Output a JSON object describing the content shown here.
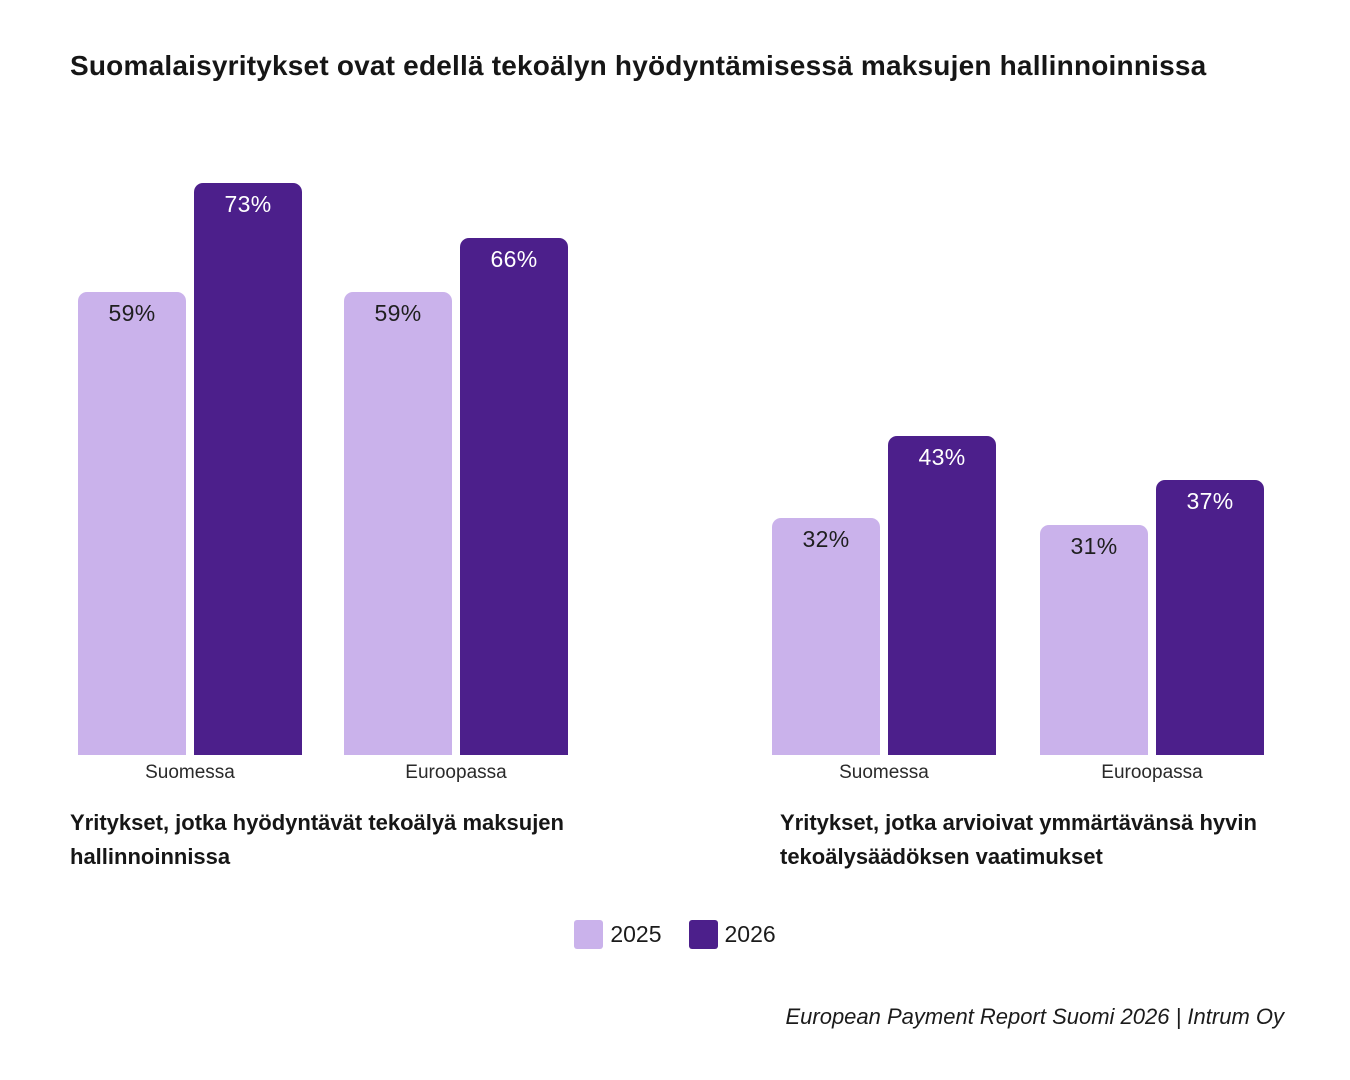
{
  "page": {
    "title": "Suomalaisyritykset ovat edellä tekoälyn hyödyntämisessä maksujen hallinnoinnissa",
    "source": "European Payment Report Suomi 2026 | Intrum Oy"
  },
  "colors": {
    "series_2025": "#CAB2EB",
    "series_2026": "#4C1F8B",
    "value_label_on_light": "#1F1F1F",
    "value_label_on_dark": "#FFFFFF",
    "text": "#161616"
  },
  "legend": {
    "position": "bottom-center",
    "items": [
      {
        "label": "2025",
        "color": "#CAB2EB"
      },
      {
        "label": "2026",
        "color": "#4C1F8B"
      }
    ]
  },
  "chart_data": [
    {
      "type": "bar",
      "title": "Yritykset, jotka hyödyntävät tekoälyä maksujen hallinnoinnissa",
      "categories": [
        "Suomessa",
        "Euroopassa"
      ],
      "series": [
        {
          "name": "2025",
          "values": [
            59,
            59
          ]
        },
        {
          "name": "2026",
          "values": [
            73,
            66
          ]
        }
      ],
      "unit": "%",
      "value_labels": "inside-top",
      "ylim": [
        0,
        100
      ],
      "grid": false,
      "axes_visible": false
    },
    {
      "type": "bar",
      "title": "Yritykset, jotka arvioivat ymmärtävänsä hyvin tekoälysäädöksen vaatimukset",
      "categories": [
        "Suomessa",
        "Euroopassa"
      ],
      "series": [
        {
          "name": "2025",
          "values": [
            32,
            31
          ]
        },
        {
          "name": "2026",
          "values": [
            43,
            37
          ]
        }
      ],
      "unit": "%",
      "value_labels": "inside-top",
      "ylim": [
        0,
        100
      ],
      "grid": false,
      "axes_visible": false
    }
  ]
}
